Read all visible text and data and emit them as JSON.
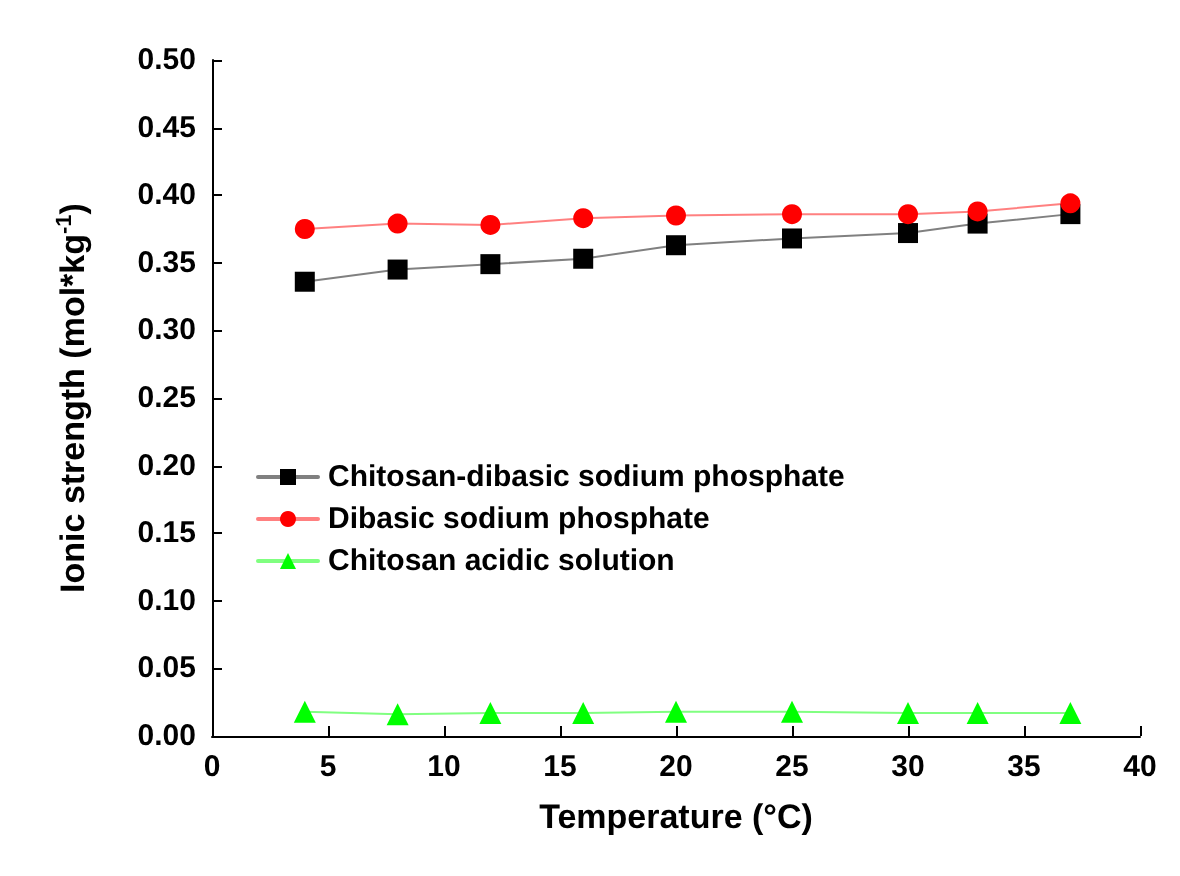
{
  "chart_data": {
    "type": "line",
    "xlabel": "Temperature (°C)",
    "ylabel": "Ionic strength (mol*kg$^{-1}$)",
    "x": [
      4,
      8,
      12,
      16,
      20,
      25,
      30,
      33,
      37
    ],
    "series": [
      {
        "name": "Chitosan-dibasic sodium phosphate",
        "color": "#000000",
        "marker": "square",
        "values": [
          0.336,
          0.345,
          0.349,
          0.353,
          0.363,
          0.368,
          0.372,
          0.379,
          0.386
        ]
      },
      {
        "name": "Dibasic sodium phosphate",
        "color": "#ff0000",
        "marker": "circle",
        "values": [
          0.375,
          0.379,
          0.378,
          0.383,
          0.385,
          0.386,
          0.386,
          0.388,
          0.394
        ]
      },
      {
        "name": "Chitosan acidic solution",
        "color": "#00ff00",
        "marker": "triangle",
        "values": [
          0.018,
          0.016,
          0.017,
          0.017,
          0.018,
          0.018,
          0.017,
          0.017,
          0.017
        ]
      }
    ],
    "xlim": [
      0,
      40
    ],
    "xticks": [
      0,
      5,
      10,
      15,
      20,
      25,
      30,
      35,
      40
    ],
    "ylim": [
      0,
      0.5
    ],
    "yticks": [
      {
        "value": 0,
        "label": "0.00"
      },
      {
        "value": 0.05,
        "label": "0.05"
      },
      {
        "value": 0.1,
        "label": "0.10"
      },
      {
        "value": 0.15,
        "label": "0.15"
      },
      {
        "value": 0.2,
        "label": "0.20"
      },
      {
        "value": 0.25,
        "label": "0.25"
      },
      {
        "value": 0.3,
        "label": "0.30"
      },
      {
        "value": 0.35,
        "label": "0.35"
      },
      {
        "value": 0.4,
        "label": "0.40"
      },
      {
        "value": 0.45,
        "label": "0.45"
      },
      {
        "value": 0.5,
        "label": "0.50"
      }
    ],
    "grid": false,
    "legend": "left",
    "line_style": "solid"
  }
}
